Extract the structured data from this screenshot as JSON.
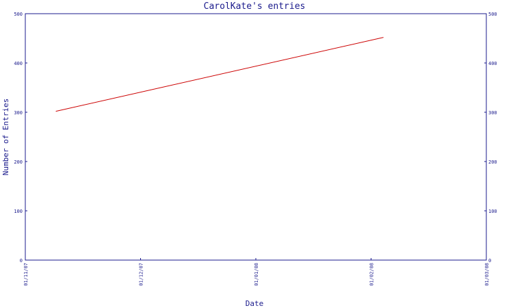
{
  "chart_data": {
    "type": "line",
    "title": "CarolKate's entries",
    "xlabel": "Date",
    "ylabel": "Number of Entries",
    "x_ticks": [
      "01/11/07",
      "01/12/07",
      "01/01/08",
      "01/02/08",
      "01/03/08"
    ],
    "y_ticks": [
      "0",
      "100",
      "200",
      "300",
      "400",
      "500"
    ],
    "y_ticks_right": [
      "0",
      "100",
      "200",
      "300",
      "400",
      "500"
    ],
    "xlim": [
      "2007-11-01",
      "2008-03-01"
    ],
    "ylim": [
      0,
      500
    ],
    "grid": false,
    "series": [
      {
        "x": [
          "2007-11-09",
          "2008-02-03"
        ],
        "y": [
          302,
          452
        ]
      }
    ],
    "colors": {
      "axis": "#1a1a8c",
      "series": "#cc0000",
      "background": "#ffffff"
    }
  }
}
